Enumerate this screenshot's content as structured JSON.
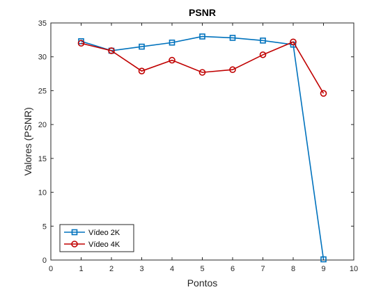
{
  "chart_data": {
    "type": "line",
    "title": "PSNR",
    "xlabel": "Pontos",
    "ylabel": "Valores (PSNR)",
    "xlim": [
      0,
      10
    ],
    "ylim": [
      0,
      35
    ],
    "xticks": [
      0,
      1,
      2,
      3,
      4,
      5,
      6,
      7,
      8,
      9,
      10
    ],
    "yticks": [
      0,
      5,
      10,
      15,
      20,
      25,
      30,
      35
    ],
    "x": [
      1,
      2,
      3,
      4,
      5,
      6,
      7,
      8,
      9
    ],
    "grid": false,
    "legend_position": "bottom-left",
    "series": [
      {
        "name": "Vídeo 2K",
        "values": [
          32.3,
          30.9,
          31.5,
          32.1,
          33.0,
          32.8,
          32.4,
          31.8,
          0.1
        ],
        "color": "#0072BD",
        "marker": "square"
      },
      {
        "name": "Vídeo 4K",
        "values": [
          32.0,
          30.9,
          27.9,
          29.5,
          27.7,
          28.1,
          30.3,
          32.2,
          24.6
        ],
        "color": "#C00000",
        "marker": "circle"
      }
    ]
  }
}
